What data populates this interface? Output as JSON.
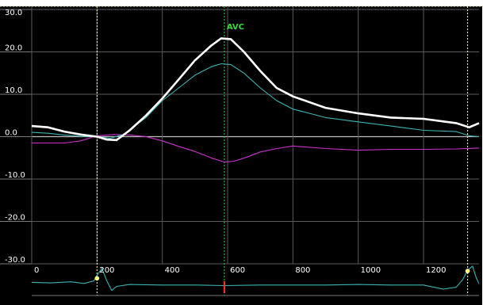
{
  "chart_data": {
    "type": "line",
    "title": "",
    "xlabel": "",
    "ylabel": "",
    "xlim": [
      0,
      1370
    ],
    "ylim": [
      -30,
      30
    ],
    "grid": true,
    "x_ticks": [
      "0",
      "200",
      "400",
      "600",
      "800",
      "1000",
      "1200"
    ],
    "y_ticks": [
      "30.0",
      "20.0",
      "10.0",
      "0.0",
      "-10.0",
      "-20.0",
      "-30.0"
    ],
    "annotations": [
      {
        "label": "AVC",
        "x": 590,
        "color": "#33dd33"
      }
    ],
    "markers": [
      {
        "x": 200,
        "style": "dotted",
        "color": "#ffffcc"
      },
      {
        "x": 590,
        "style": "dotted",
        "color": "#33dd33"
      },
      {
        "x": 1335,
        "style": "dotted",
        "color": "#ffffcc"
      }
    ],
    "series": [
      {
        "color": "#ffffff",
        "x": [
          0,
          50,
          100,
          150,
          200,
          230,
          260,
          300,
          350,
          400,
          450,
          500,
          550,
          580,
          610,
          650,
          700,
          750,
          800,
          900,
          1000,
          1100,
          1200,
          1300,
          1340,
          1370
        ],
        "y": [
          2.5,
          2.2,
          1.2,
          0.5,
          0,
          -0.7,
          -0.8,
          1.5,
          5.0,
          9.0,
          13.5,
          18.0,
          21.5,
          23.2,
          23.0,
          20.0,
          15.5,
          11.5,
          9.5,
          6.8,
          5.5,
          4.5,
          4.2,
          3.2,
          2.2,
          3.2
        ]
      },
      {
        "color": "#3cb4b4",
        "x": [
          0,
          50,
          100,
          150,
          200,
          240,
          280,
          350,
          400,
          450,
          500,
          550,
          580,
          610,
          650,
          700,
          750,
          800,
          900,
          1000,
          1100,
          1200,
          1300,
          1340,
          1370
        ],
        "y": [
          1.0,
          0.8,
          0.4,
          0.1,
          0,
          -0.4,
          0.5,
          4.5,
          8.5,
          11.5,
          14.5,
          16.5,
          17.2,
          17.0,
          15.0,
          11.5,
          8.5,
          6.5,
          4.5,
          3.5,
          2.5,
          1.5,
          1.2,
          0.2,
          0
        ]
      },
      {
        "color": "#cc33cc",
        "x": [
          0,
          50,
          100,
          150,
          200,
          250,
          300,
          350,
          400,
          450,
          500,
          550,
          590,
          620,
          660,
          700,
          750,
          800,
          900,
          1000,
          1100,
          1200,
          1300,
          1370
        ],
        "y": [
          -1.5,
          -1.5,
          -1.5,
          -1.0,
          0.2,
          0.5,
          0.4,
          0.0,
          -1.0,
          -2.3,
          -3.5,
          -5.0,
          -6.0,
          -5.8,
          -4.8,
          -3.6,
          -2.8,
          -2.2,
          -2.8,
          -3.2,
          -3.0,
          -3.0,
          -2.9,
          -2.7
        ]
      }
    ],
    "ecg_strip": {
      "color": "#3cb4b4",
      "marker_color": "#ffff66",
      "cursor_color": "#ff3333",
      "x": [
        0,
        60,
        120,
        160,
        190,
        200,
        215,
        230,
        245,
        260,
        300,
        400,
        500,
        590,
        700,
        800,
        900,
        1000,
        1100,
        1200,
        1260,
        1300,
        1320,
        1335,
        1350,
        1362,
        1370
      ],
      "y": [
        0.4,
        0.38,
        0.42,
        0.36,
        0.45,
        0.65,
        0.92,
        0.45,
        0.1,
        0.25,
        0.32,
        0.3,
        0.3,
        0.28,
        0.3,
        0.3,
        0.3,
        0.32,
        0.3,
        0.3,
        0.15,
        0.22,
        0.5,
        0.85,
        1.0,
        0.55,
        0.35
      ],
      "points": [
        {
          "x": 200,
          "y": 0.55
        },
        {
          "x": 1335,
          "y": 0.82
        }
      ],
      "cursor_x": 590
    }
  }
}
